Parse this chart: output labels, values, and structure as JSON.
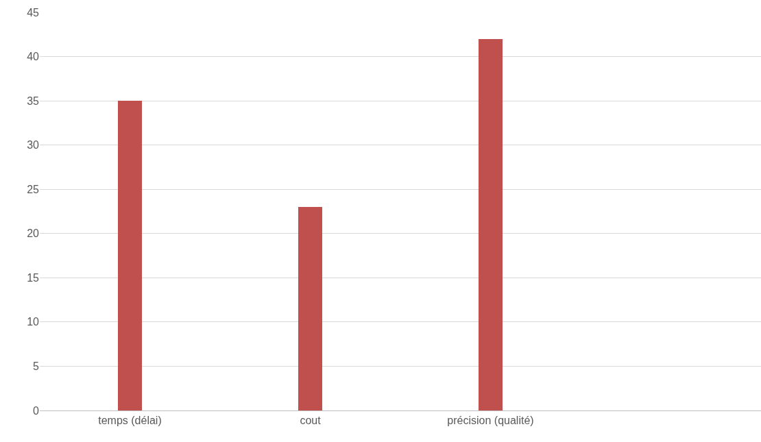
{
  "chart_data": {
    "type": "bar",
    "categories": [
      "temps (délai)",
      "cout",
      "précision (qualité)",
      null
    ],
    "values": [
      35,
      23,
      42,
      null
    ],
    "color": "#c0504d",
    "ylim": [
      0,
      45
    ],
    "yticks": [
      0,
      5,
      10,
      15,
      20,
      25,
      30,
      35,
      40,
      45
    ],
    "grid": "y"
  }
}
